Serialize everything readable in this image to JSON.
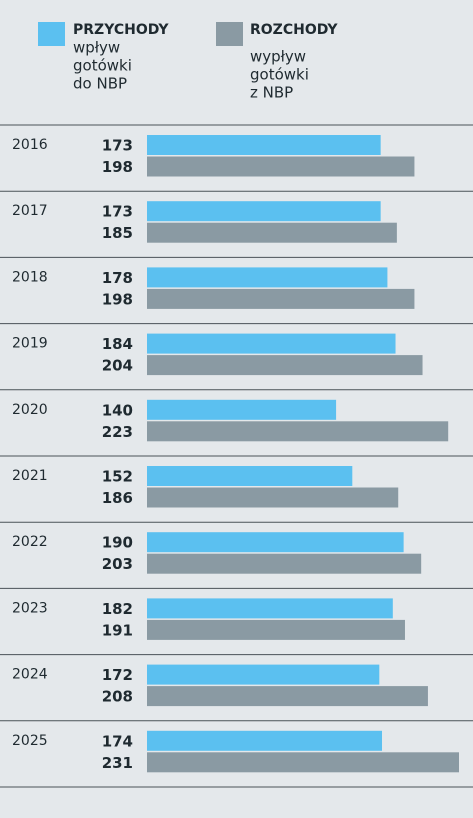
{
  "chart_data": {
    "type": "bar",
    "orientation": "horizontal",
    "categories": [
      "2016",
      "2017",
      "2018",
      "2019",
      "2020",
      "2021",
      "2022",
      "2023",
      "2024",
      "2025"
    ],
    "series": [
      {
        "name": "PRZYCHODY",
        "notes": [
          "wpływ",
          "gotówki",
          "do NBP"
        ],
        "color": "#5bc0f0",
        "values": [
          173,
          173,
          178,
          184,
          140,
          152,
          190,
          182,
          172,
          174
        ]
      },
      {
        "name": "ROZCHODY",
        "notes": [
          "wypływ",
          "gotówki",
          "z NBP"
        ],
        "color": "#8a9aa3",
        "values": [
          198,
          185,
          198,
          204,
          223,
          186,
          203,
          191,
          208,
          231
        ]
      }
    ]
  }
}
